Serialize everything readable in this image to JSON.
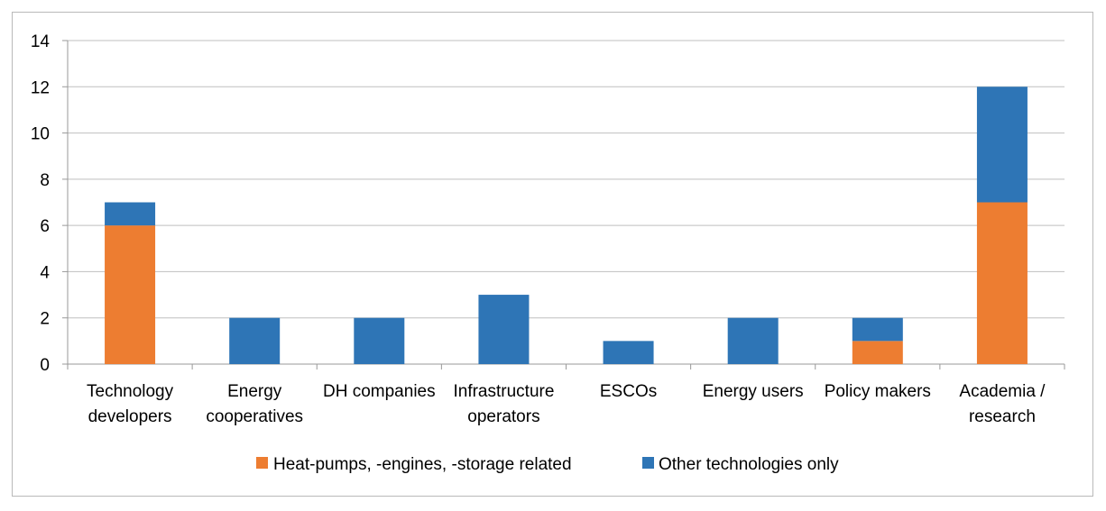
{
  "chart_data": {
    "type": "bar",
    "stacked": true,
    "categories": [
      [
        "Technology",
        "developers"
      ],
      [
        "Energy",
        "cooperatives"
      ],
      [
        "DH companies"
      ],
      [
        "Infrastructure",
        "operators"
      ],
      [
        "ESCOs"
      ],
      [
        "Energy users"
      ],
      [
        "Policy makers"
      ],
      [
        "Academia /",
        "research"
      ]
    ],
    "series": [
      {
        "name": "Heat-pumps, -engines, -storage related",
        "color": "#ed7d31",
        "values": [
          6,
          0,
          0,
          0,
          0,
          0,
          1,
          7
        ]
      },
      {
        "name": "Other technologies only",
        "color": "#2e75b6",
        "values": [
          1,
          2,
          2,
          3,
          1,
          2,
          1,
          5
        ]
      }
    ],
    "ylim": [
      0,
      14
    ],
    "yticks": [
      0,
      2,
      4,
      6,
      8,
      10,
      12,
      14
    ],
    "grid": true,
    "legend_position": "bottom"
  }
}
